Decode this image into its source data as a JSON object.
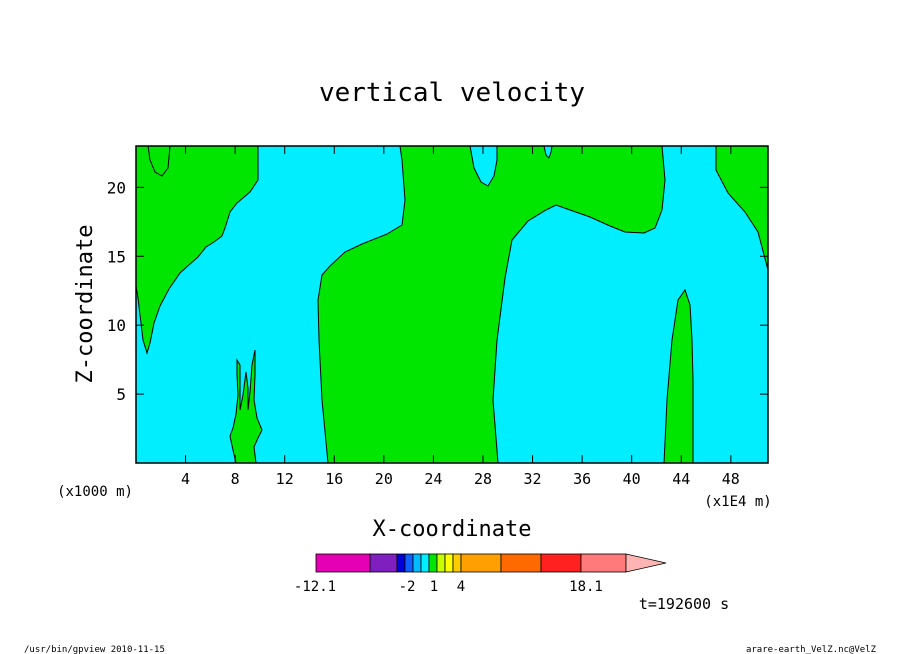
{
  "chart_data": {
    "type": "contour",
    "title": "vertical velocity",
    "xlabel": "X-coordinate",
    "ylabel": "Z-coordinate",
    "xlim": [
      0,
      51
    ],
    "ylim": [
      0,
      23
    ],
    "x_ticks": [
      4,
      8,
      12,
      16,
      20,
      24,
      28,
      32,
      36,
      40,
      44,
      48
    ],
    "y_ticks": [
      5,
      10,
      15,
      20
    ],
    "x_unit_left": "(x1000 m)",
    "x_unit_right": "(x1E4 m)",
    "fill_colors": {
      "negative": "#00eeff",
      "positive": "#00e600"
    },
    "contour_levels": [
      -12.1,
      -2,
      1,
      4,
      18.1
    ],
    "colorbar": {
      "colors": [
        "#e600b4",
        "#7f1fbf",
        "#0000d8",
        "#1060ff",
        "#00bbff",
        "#00eeff",
        "#00e600",
        "#c8ff00",
        "#ffff00",
        "#ffcc00",
        "#ffa000",
        "#ff6a00",
        "#ff2020",
        "#ff7a7a",
        "#ffb4b4"
      ],
      "labels": [
        "-12.1",
        "-2",
        "1",
        "4",
        "18.1"
      ]
    },
    "time_label": "t=192600 s",
    "grid": false
  },
  "footer": {
    "left": "/usr/bin/gpview  2010-11-15",
    "right": "arare-earth_VelZ.nc@VelZ"
  }
}
